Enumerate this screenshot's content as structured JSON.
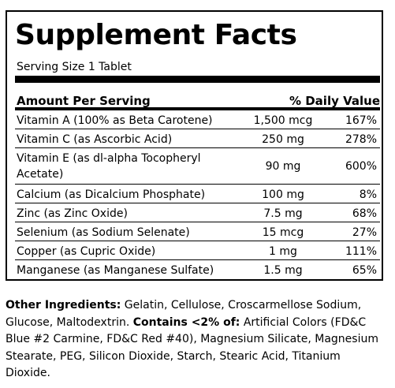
{
  "panel": {
    "title": "Supplement Facts",
    "serving_size": "Serving Size 1 Tablet",
    "header": {
      "amount_per_serving": "Amount Per Serving",
      "daily_value": "% Daily Value"
    },
    "rows": [
      {
        "nutrient": "Vitamin A (100% as Beta Carotene)",
        "amount": "1,500 mcg",
        "dv": "167%"
      },
      {
        "nutrient": "Vitamin C (as Ascorbic Acid)",
        "amount": "250 mg",
        "dv": "278%"
      },
      {
        "nutrient": "Vitamin E (as dl-alpha Tocopheryl Acetate)",
        "amount": "90 mg",
        "dv": "600%"
      },
      {
        "nutrient": "Calcium (as Dicalcium Phosphate)",
        "amount": "100 mg",
        "dv": "8%"
      },
      {
        "nutrient": "Zinc (as Zinc Oxide)",
        "amount": "7.5 mg",
        "dv": "68%"
      },
      {
        "nutrient": "Selenium (as Sodium Selenate)",
        "amount": "15 mcg",
        "dv": "27%"
      },
      {
        "nutrient": "Copper (as Cupric Oxide)",
        "amount": "1 mg",
        "dv": "111%"
      },
      {
        "nutrient": "Manganese (as Manganese Sulfate)",
        "amount": "1.5 mg",
        "dv": "65%"
      }
    ]
  },
  "ingredients": {
    "other_label": "Other Ingredients:",
    "other_text": " Gelatin, Cellulose, Croscarmellose Sodium, Glucose, Maltodextrin. ",
    "contains_label": "Contains <2% of:",
    "contains_text": " Artificial Colors (FD&C Blue #2 Carmine, FD&C Red #40), Magnesium Silicate, Magnesium Stearate, PEG, Silicon Dioxide, Starch, Stearic Acid, Titanium Dioxide."
  }
}
